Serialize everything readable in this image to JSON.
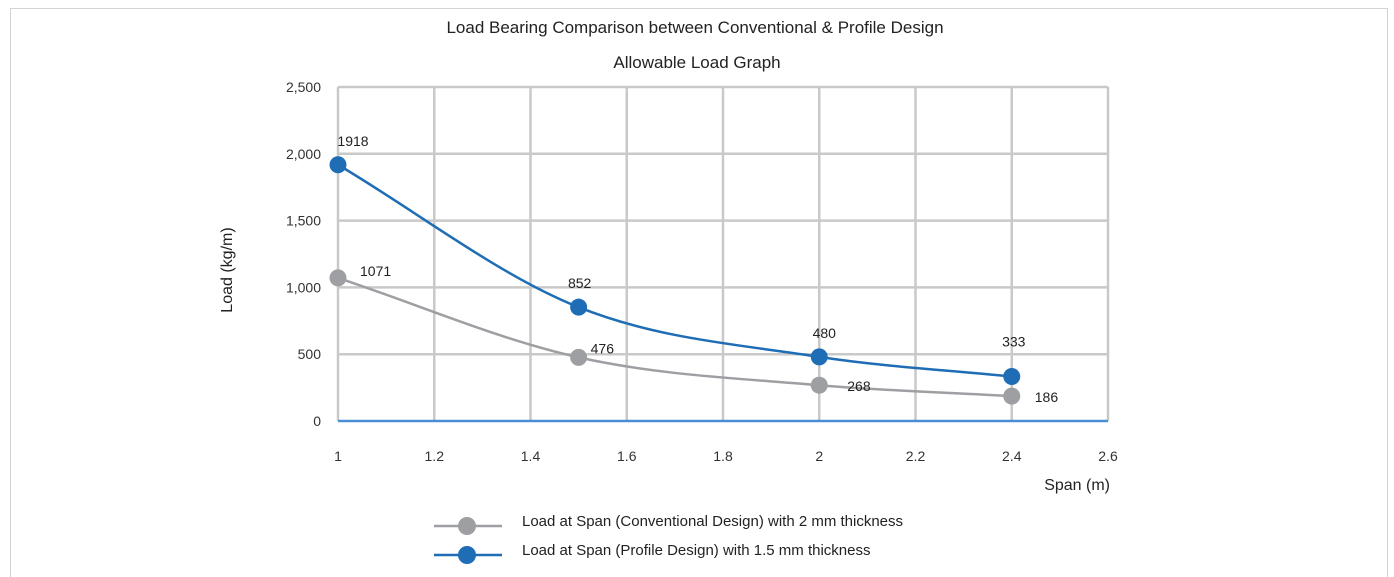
{
  "chart_data": {
    "type": "line",
    "title": "Load Bearing Comparison between Conventional & Profile Design",
    "subtitle": "Allowable Load Graph",
    "xlabel": "Span (m)",
    "ylabel": "Load (kg/m)",
    "xlim": [
      1,
      2.6
    ],
    "ylim": [
      0,
      2500
    ],
    "x_ticks": [
      "1",
      "1.2",
      "1.4",
      "1.6",
      "1.8",
      "2",
      "2.2",
      "2.4",
      "2.6"
    ],
    "y_ticks": [
      "0",
      "500",
      "1,000",
      "1,500",
      "2,000",
      "2,500"
    ],
    "grid": true,
    "legend_position": "bottom",
    "series": [
      {
        "name": "Load at Span (Conventional Design) with 2 mm thickness",
        "color": "#9d9fa2",
        "x": [
          1,
          1.5,
          2,
          2.4
        ],
        "y": [
          1071,
          476,
          268,
          186
        ],
        "labels": [
          "1071",
          "476",
          "268",
          "186"
        ]
      },
      {
        "name": "Load at Span (Profile Design) with 1.5 mm thickness",
        "color": "#1e6db5",
        "x": [
          1,
          1.5,
          2,
          2.4
        ],
        "y": [
          1918,
          852,
          480,
          333
        ],
        "labels": [
          "1918",
          "852",
          "480",
          "333"
        ]
      }
    ]
  }
}
